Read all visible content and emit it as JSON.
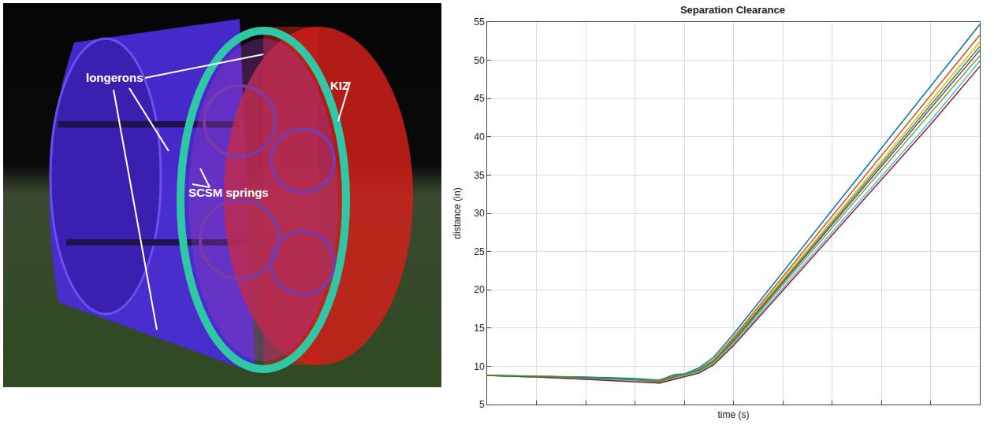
{
  "figure": {
    "labels": [
      "longerons",
      "SCSM springs",
      "KIZ"
    ]
  },
  "chart_data": {
    "type": "line",
    "title": "Separation Clearance",
    "x_label": "time (s)",
    "y_label": "distance (in)",
    "x": [
      0,
      1,
      2,
      3,
      3.5,
      3.8,
      4,
      4.3,
      4.6,
      5,
      6,
      7,
      8,
      9,
      10
    ],
    "xlim": [
      0,
      10
    ],
    "xticks": [
      0,
      1,
      2,
      3,
      4,
      5,
      6,
      7,
      8,
      9,
      10
    ],
    "ylim": [
      5,
      55
    ],
    "yticks": [
      5,
      10,
      15,
      20,
      25,
      30,
      35,
      40,
      45,
      50,
      55
    ],
    "grid": true,
    "tick_labels": "y",
    "series": [
      {
        "color": "#0072bd",
        "values": [
          8.8,
          8.7,
          8.6,
          8.4,
          8.2,
          8.9,
          9.0,
          9.8,
          11.2,
          14.2,
          22.3,
          30.4,
          38.5,
          46.6,
          54.7
        ]
      },
      {
        "color": "#d95319",
        "values": [
          8.8,
          8.7,
          8.5,
          8.3,
          8.1,
          8.8,
          8.9,
          9.6,
          10.9,
          13.8,
          21.7,
          29.6,
          37.5,
          45.4,
          53.3
        ]
      },
      {
        "color": "#edb120",
        "values": [
          8.8,
          8.7,
          8.5,
          8.2,
          8.0,
          8.7,
          8.9,
          9.5,
          10.8,
          13.6,
          21.3,
          29.1,
          36.8,
          44.6,
          52.4
        ]
      },
      {
        "color": "#7e2f8e",
        "values": [
          8.8,
          8.6,
          8.5,
          8.2,
          7.9,
          8.6,
          8.8,
          9.4,
          10.6,
          13.3,
          20.9,
          28.5,
          36.1,
          43.7,
          51.3
        ]
      },
      {
        "color": "#77ac30",
        "values": [
          8.8,
          8.6,
          8.4,
          8.1,
          7.9,
          8.5,
          8.8,
          9.3,
          10.5,
          13.1,
          20.6,
          28.1,
          35.6,
          43.1,
          50.6
        ]
      },
      {
        "color": "#4dbeee",
        "values": [
          8.8,
          8.6,
          8.4,
          8.1,
          7.8,
          8.4,
          8.7,
          9.2,
          10.3,
          12.9,
          20.2,
          27.5,
          34.8,
          42.1,
          49.9
        ]
      },
      {
        "color": "#a2142f",
        "values": [
          8.8,
          8.6,
          8.3,
          8.0,
          7.8,
          8.3,
          8.6,
          9.1,
          10.2,
          12.7,
          19.9,
          27.1,
          34.3,
          41.6,
          49.2
        ]
      },
      {
        "color": "#2ca02c",
        "values": [
          8.8,
          8.7,
          8.5,
          8.3,
          8.0,
          8.7,
          8.9,
          9.5,
          10.7,
          13.5,
          21.1,
          28.8,
          36.4,
          44.1,
          51.8
        ]
      }
    ]
  }
}
